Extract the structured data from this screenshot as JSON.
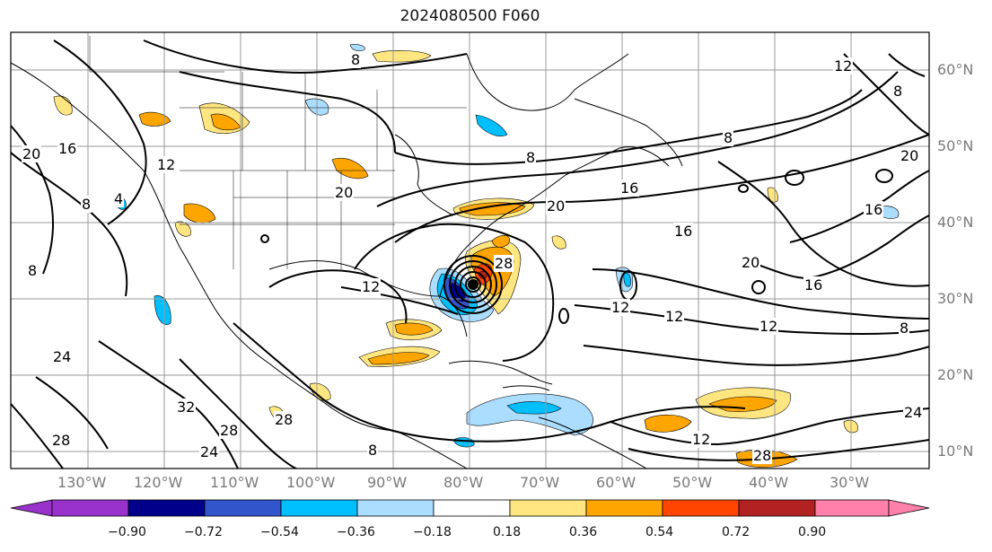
{
  "title": "2024080500 F060",
  "lat_labels": [
    "60°N",
    "50°N",
    "40°N",
    "30°N",
    "20°N",
    "10°N"
  ],
  "lon_labels": [
    "130°W",
    "120°W",
    "110°W",
    "100°W",
    "90°W",
    "80°W",
    "70°W",
    "60°W",
    "50°W",
    "40°W",
    "30°W"
  ],
  "contour_labels": [
    "8",
    "8",
    "8",
    "8",
    "8",
    "8",
    "8",
    "8",
    "12",
    "12",
    "12",
    "12",
    "12",
    "12",
    "12",
    "16",
    "16",
    "16",
    "16",
    "16",
    "20",
    "20",
    "20",
    "20",
    "20",
    "24",
    "24",
    "24",
    "28",
    "28",
    "28",
    "28",
    "28",
    "32",
    "4"
  ],
  "colorbar": {
    "ticks": [
      "−0.90",
      "−0.72",
      "−0.54",
      "−0.36",
      "−0.18",
      "0.18",
      "0.36",
      "0.54",
      "0.72",
      "0.90"
    ],
    "colors": [
      "#9932cc",
      "#00008b",
      "#3355cc",
      "#00bfff",
      "#aaddff",
      "#ffffff",
      "#ffe680",
      "#ffa500",
      "#ff4500",
      "#b22222",
      "#ff80aa"
    ]
  },
  "colors": {
    "frame": "#000000",
    "grid": "#999999",
    "contour": "#000000"
  }
}
